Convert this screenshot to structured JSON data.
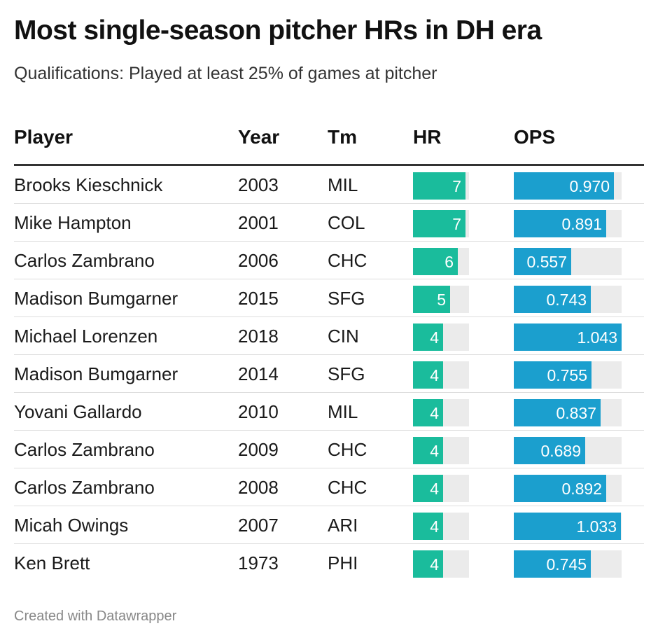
{
  "title": "Most single-season pitcher HRs in DH era",
  "subtitle": "Qualifications: Played at least 25% of games at pitcher",
  "footer": "Created with Datawrapper",
  "colors": {
    "hr_bar": "#1abc9c",
    "ops_bar": "#1b9fce",
    "track": "#ebebeb"
  },
  "chart_data": {
    "type": "table",
    "columns": [
      "Player",
      "Year",
      "Tm",
      "HR",
      "OPS"
    ],
    "bar_scales": {
      "HR": [
        0,
        7.5
      ],
      "OPS": [
        0,
        1.043
      ]
    },
    "rows": [
      {
        "player": "Brooks Kieschnick",
        "year": "2003",
        "tm": "MIL",
        "hr": 7,
        "hr_label": "7",
        "ops": 0.97,
        "ops_label": "0.970"
      },
      {
        "player": "Mike Hampton",
        "year": "2001",
        "tm": "COL",
        "hr": 7,
        "hr_label": "7",
        "ops": 0.891,
        "ops_label": "0.891"
      },
      {
        "player": "Carlos Zambrano",
        "year": "2006",
        "tm": "CHC",
        "hr": 6,
        "hr_label": "6",
        "ops": 0.557,
        "ops_label": "0.557"
      },
      {
        "player": "Madison Bumgarner",
        "year": "2015",
        "tm": "SFG",
        "hr": 5,
        "hr_label": "5",
        "ops": 0.743,
        "ops_label": "0.743"
      },
      {
        "player": "Michael Lorenzen",
        "year": "2018",
        "tm": "CIN",
        "hr": 4,
        "hr_label": "4",
        "ops": 1.043,
        "ops_label": "1.043"
      },
      {
        "player": "Madison Bumgarner",
        "year": "2014",
        "tm": "SFG",
        "hr": 4,
        "hr_label": "4",
        "ops": 0.755,
        "ops_label": "0.755"
      },
      {
        "player": "Yovani Gallardo",
        "year": "2010",
        "tm": "MIL",
        "hr": 4,
        "hr_label": "4",
        "ops": 0.837,
        "ops_label": "0.837"
      },
      {
        "player": "Carlos Zambrano",
        "year": "2009",
        "tm": "CHC",
        "hr": 4,
        "hr_label": "4",
        "ops": 0.689,
        "ops_label": "0.689"
      },
      {
        "player": "Carlos Zambrano",
        "year": "2008",
        "tm": "CHC",
        "hr": 4,
        "hr_label": "4",
        "ops": 0.892,
        "ops_label": "0.892"
      },
      {
        "player": "Micah Owings",
        "year": "2007",
        "tm": "ARI",
        "hr": 4,
        "hr_label": "4",
        "ops": 1.033,
        "ops_label": "1.033"
      },
      {
        "player": "Ken Brett",
        "year": "1973",
        "tm": "PHI",
        "hr": 4,
        "hr_label": "4",
        "ops": 0.745,
        "ops_label": "0.745"
      }
    ]
  }
}
